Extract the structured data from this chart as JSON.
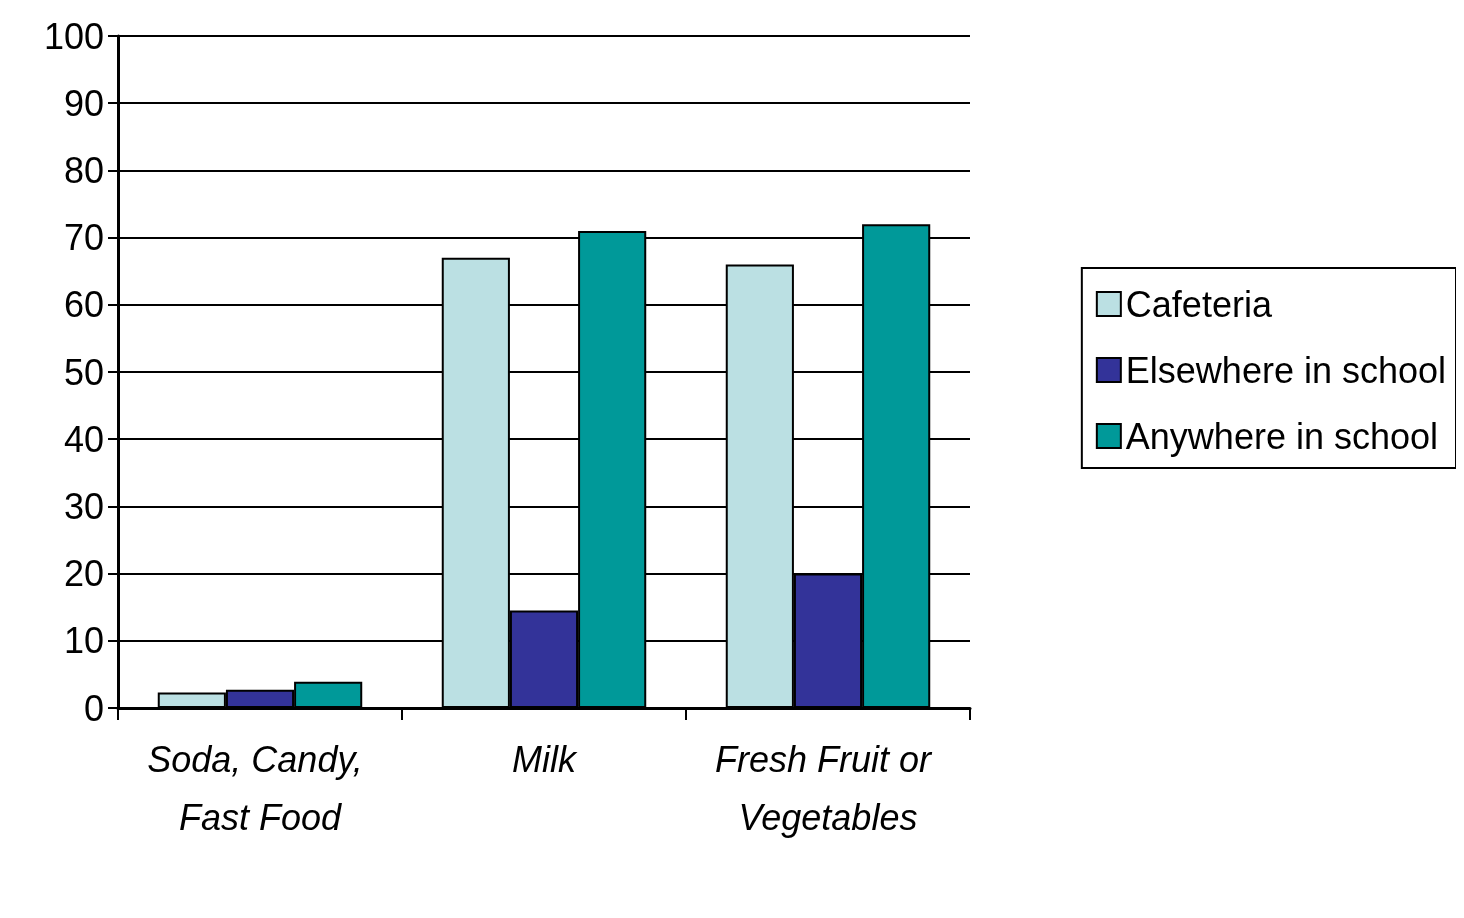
{
  "chart_data": {
    "type": "bar",
    "categories": [
      "Soda, Candy, Fast Food",
      "Milk",
      "Fresh Fruit or Vegetables"
    ],
    "series": [
      {
        "name": "Cafeteria",
        "color": "#bbe0e3",
        "values": [
          2.3,
          67,
          66
        ]
      },
      {
        "name": "Elsewhere in school",
        "color": "#333399",
        "values": [
          2.7,
          14.5,
          20
        ]
      },
      {
        "name": "Anywhere in school",
        "color": "#009999",
        "values": [
          3.9,
          71,
          72
        ]
      }
    ],
    "ylim": [
      0,
      100
    ],
    "yticks": [
      0,
      10,
      20,
      30,
      40,
      50,
      60,
      70,
      80,
      90,
      100
    ],
    "grid": "y",
    "legend": "right"
  }
}
